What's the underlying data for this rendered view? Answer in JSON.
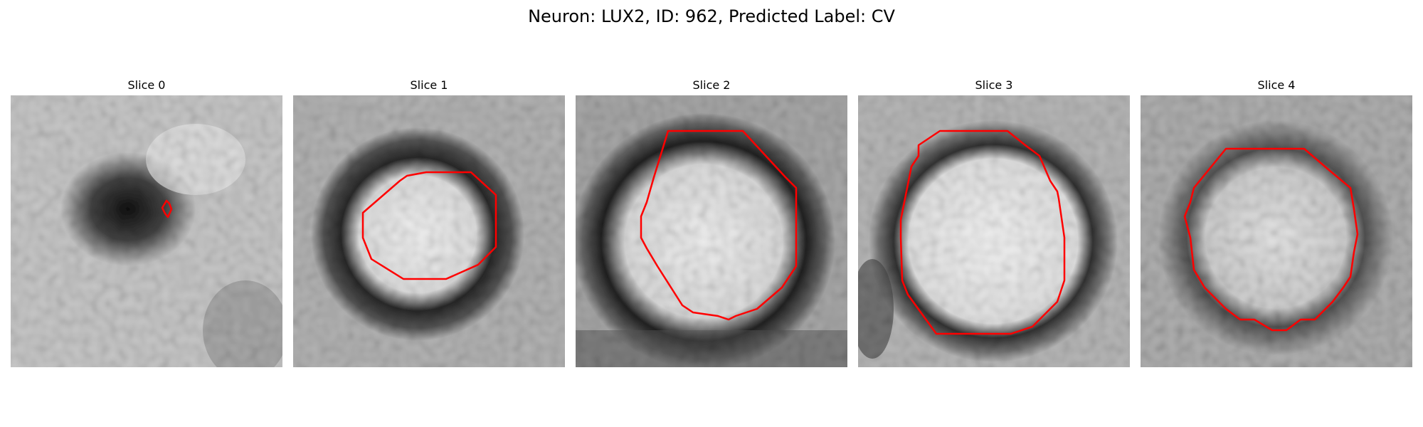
{
  "figure": {
    "title": "Neuron: LUX2, ID: 962, Predicted Label: CV"
  },
  "panels": [
    {
      "title": "Slice 0"
    },
    {
      "title": "Slice 1"
    },
    {
      "title": "Slice 2"
    },
    {
      "title": "Slice 3"
    },
    {
      "title": "Slice 4"
    }
  ],
  "colors": {
    "contour": "#ff0000"
  }
}
